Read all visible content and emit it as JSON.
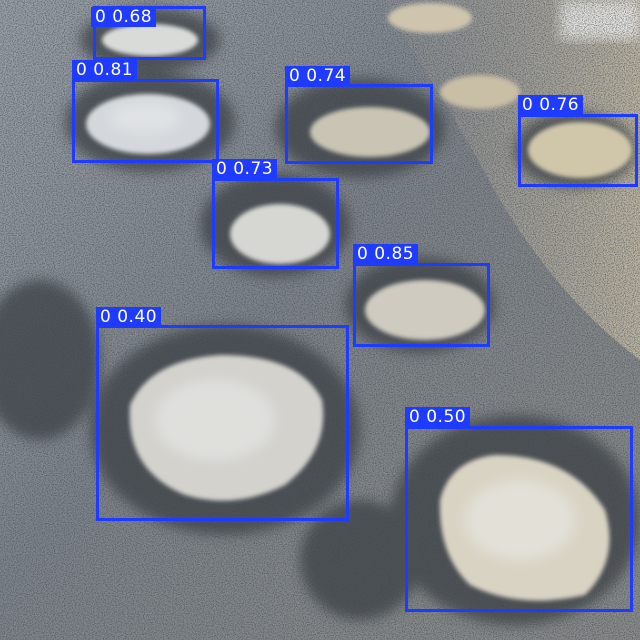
{
  "image": {
    "description_tag": "road-potholes-detection",
    "box_color": "#1f3bff",
    "label_text_color": "#ffffff"
  },
  "detections": [
    {
      "class_id": "0",
      "score": "0.68",
      "text": "0  0.68"
    },
    {
      "class_id": "0",
      "score": "0.81",
      "text": "0  0.81"
    },
    {
      "class_id": "0",
      "score": "0.74",
      "text": "0  0.74"
    },
    {
      "class_id": "0",
      "score": "0.76",
      "text": "0  0.76"
    },
    {
      "class_id": "0",
      "score": "0.73",
      "text": "0  0.73"
    },
    {
      "class_id": "0",
      "score": "0.85",
      "text": "0  0.85"
    },
    {
      "class_id": "0",
      "score": "0.40",
      "text": "0  0.40"
    },
    {
      "class_id": "0",
      "score": "0.50",
      "text": "0  0.50"
    }
  ]
}
